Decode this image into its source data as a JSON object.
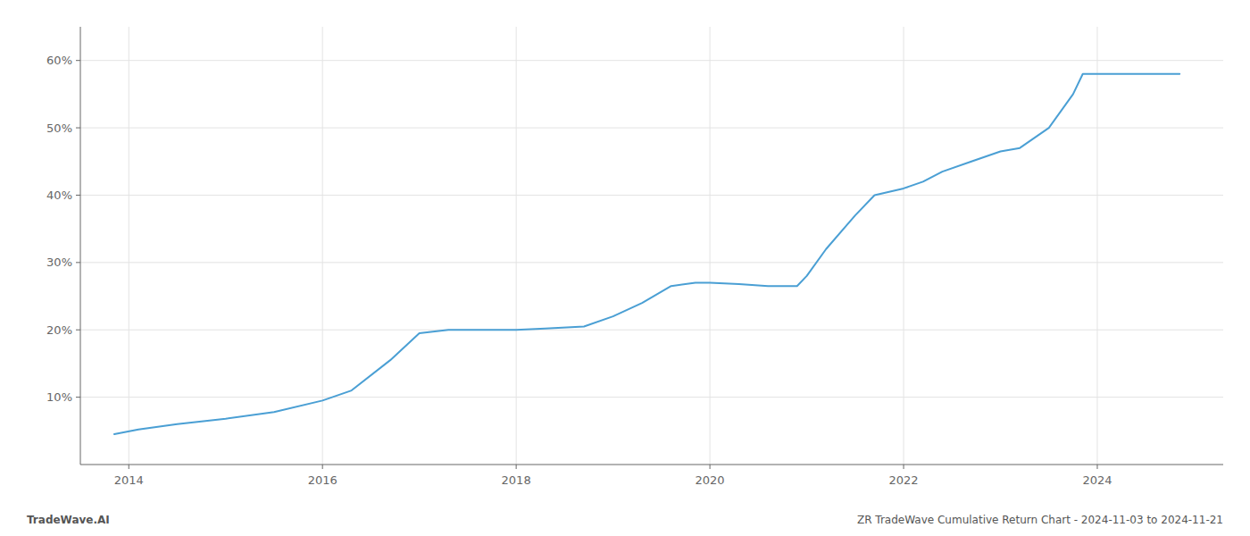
{
  "chart_data": {
    "type": "line",
    "x": [
      2013.85,
      2014.1,
      2014.5,
      2015.0,
      2015.5,
      2016.0,
      2016.3,
      2016.7,
      2017.0,
      2017.3,
      2017.6,
      2018.0,
      2018.3,
      2018.7,
      2019.0,
      2019.3,
      2019.6,
      2019.85,
      2020.0,
      2020.3,
      2020.6,
      2020.9,
      2021.0,
      2021.2,
      2021.5,
      2021.7,
      2022.0,
      2022.2,
      2022.4,
      2022.7,
      2023.0,
      2023.2,
      2023.5,
      2023.75,
      2023.85,
      2024.0,
      2024.5,
      2024.85
    ],
    "values": [
      4.5,
      5.2,
      6.0,
      6.8,
      7.8,
      9.5,
      11.0,
      15.5,
      19.5,
      20.0,
      20.0,
      20.0,
      20.2,
      20.5,
      22.0,
      24.0,
      26.5,
      27.0,
      27.0,
      26.8,
      26.5,
      26.5,
      28.0,
      32.0,
      37.0,
      40.0,
      41.0,
      42.0,
      43.5,
      45.0,
      46.5,
      47.0,
      50.0,
      55.0,
      58.0,
      58.0,
      58.0,
      58.0
    ],
    "color": "#4a9fd4",
    "xlim": [
      2013.5,
      2025.3
    ],
    "ylim": [
      0,
      65
    ],
    "xticks": [
      2014,
      2016,
      2018,
      2020,
      2022,
      2024
    ],
    "yticks": [
      {
        "value": 10,
        "label": "10%"
      },
      {
        "value": 20,
        "label": "20%"
      },
      {
        "value": 30,
        "label": "30%"
      },
      {
        "value": 40,
        "label": "40%"
      },
      {
        "value": 50,
        "label": "50%"
      },
      {
        "value": 60,
        "label": "60%"
      }
    ],
    "grid": true,
    "annotations": [
      "TradeWave.AI",
      "ZR TradeWave Cumulative Return Chart - 2024-11-03 to 2024-11-21"
    ]
  }
}
